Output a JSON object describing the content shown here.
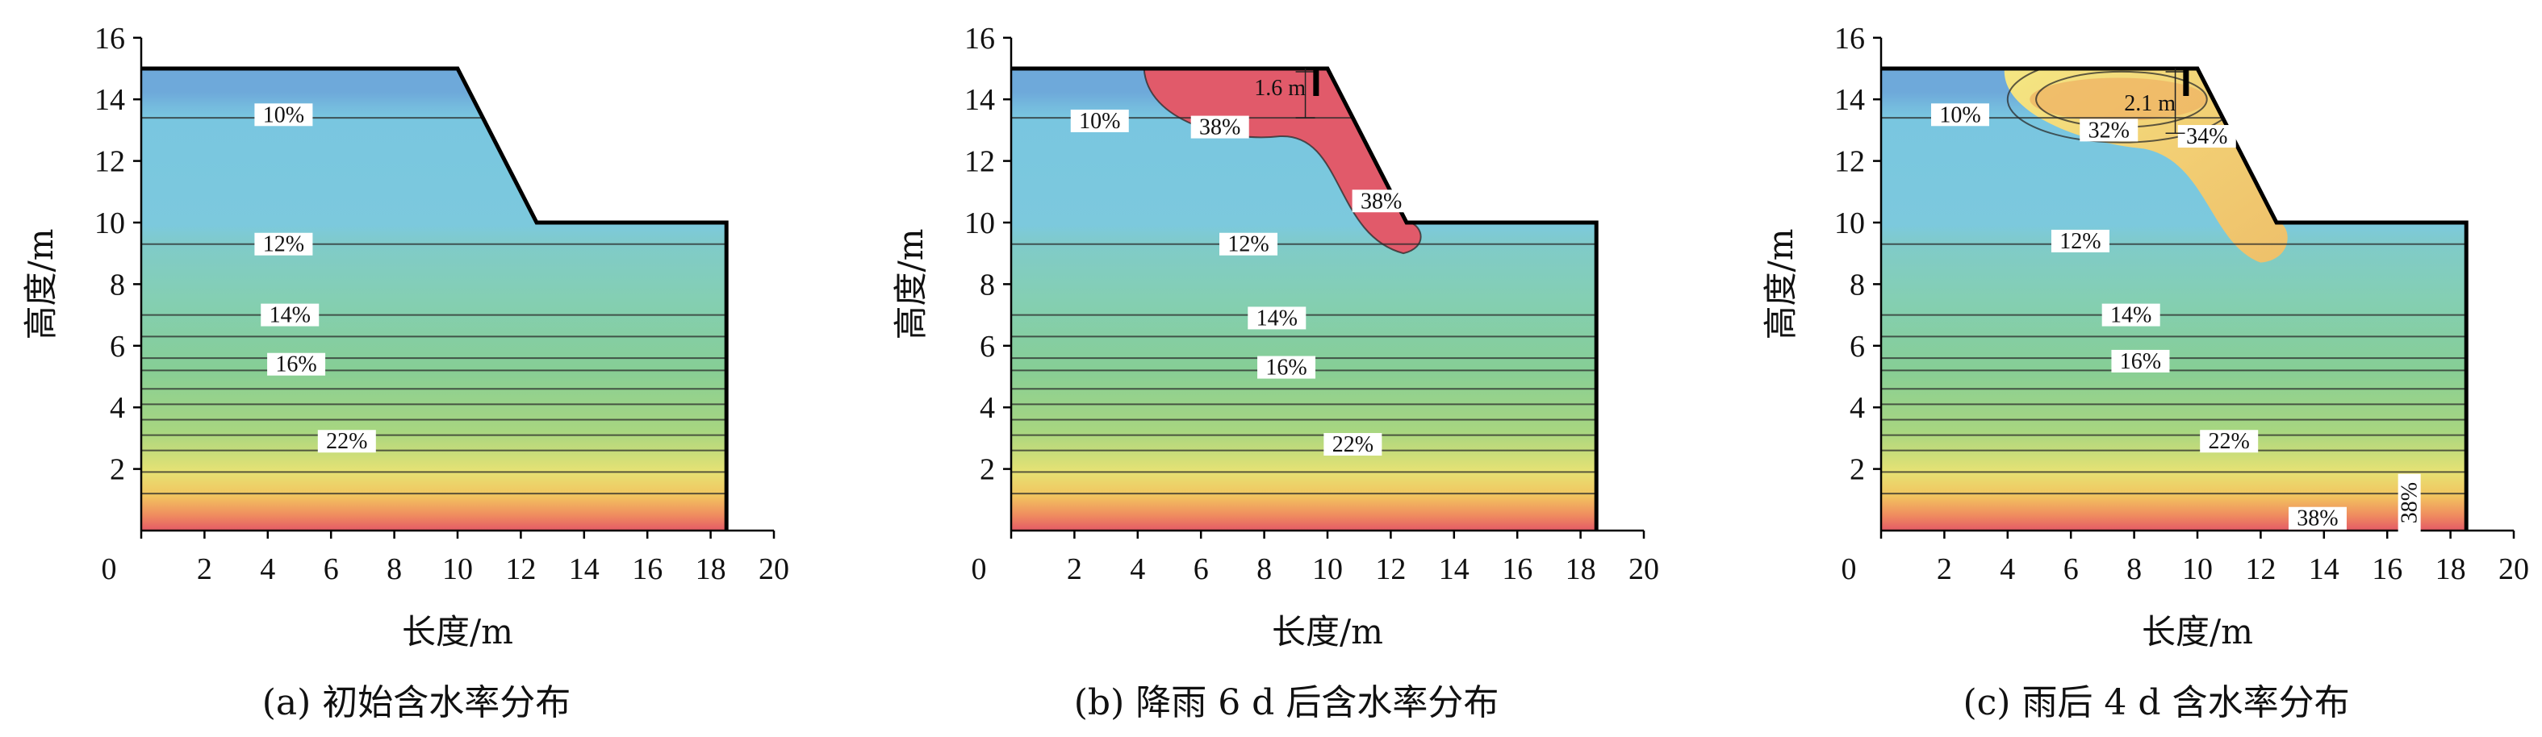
{
  "chart_data": [
    {
      "type": "heatmap",
      "caption": "(a) 初始含水率分布",
      "xlabel": "长度/m",
      "ylabel": "高度/m",
      "xlim": [
        0,
        20
      ],
      "ylim": [
        0,
        16
      ],
      "x_ticks": [
        "0",
        "2",
        "4",
        "6",
        "8",
        "10",
        "12",
        "14",
        "16",
        "18",
        "20"
      ],
      "y_ticks": [
        "2",
        "4",
        "6",
        "8",
        "10",
        "12",
        "14",
        "16"
      ],
      "slope_profile": {
        "x": [
          0,
          10,
          12.5,
          18.5
        ],
        "y": [
          15,
          15,
          10,
          10
        ]
      },
      "contour_labels": [
        {
          "text": "10%",
          "x": 4.5,
          "y": 13.5
        },
        {
          "text": "12%",
          "x": 4.5,
          "y": 9.3
        },
        {
          "text": "14%",
          "x": 4.7,
          "y": 7.0
        },
        {
          "text": "16%",
          "x": 4.9,
          "y": 5.4
        },
        {
          "text": "22%",
          "x": 6.5,
          "y": 2.9
        }
      ],
      "annotations": []
    },
    {
      "type": "heatmap",
      "caption": "(b) 降雨 6 d 后含水率分布",
      "xlabel": "长度/m",
      "ylabel": "高度/m",
      "xlim": [
        0,
        20
      ],
      "ylim": [
        0,
        16
      ],
      "x_ticks": [
        "0",
        "2",
        "4",
        "6",
        "8",
        "10",
        "12",
        "14",
        "16",
        "18",
        "20"
      ],
      "y_ticks": [
        "2",
        "4",
        "6",
        "8",
        "10",
        "12",
        "14",
        "16"
      ],
      "slope_profile": {
        "x": [
          0,
          10,
          12.5,
          18.5
        ],
        "y": [
          15,
          15,
          10,
          10
        ]
      },
      "contour_labels": [
        {
          "text": "10%",
          "x": 2.8,
          "y": 13.3
        },
        {
          "text": "38%",
          "x": 6.6,
          "y": 13.1
        },
        {
          "text": "38%",
          "x": 11.7,
          "y": 10.7
        },
        {
          "text": "12%",
          "x": 7.5,
          "y": 9.3
        },
        {
          "text": "14%",
          "x": 8.4,
          "y": 6.9
        },
        {
          "text": "16%",
          "x": 8.7,
          "y": 5.3
        },
        {
          "text": "22%",
          "x": 10.8,
          "y": 2.8
        }
      ],
      "annotations": [
        {
          "text": "1.6 m",
          "x": 8.5,
          "y": 14.4
        }
      ]
    },
    {
      "type": "heatmap",
      "caption": "(c) 雨后 4 d 含水率分布",
      "xlabel": "长度/m",
      "ylabel": "高度/m",
      "xlim": [
        0,
        20
      ],
      "ylim": [
        0,
        16
      ],
      "x_ticks": [
        "0",
        "2",
        "4",
        "6",
        "8",
        "10",
        "12",
        "14",
        "16",
        "18",
        "20"
      ],
      "y_ticks": [
        "2",
        "4",
        "6",
        "8",
        "10",
        "12",
        "14",
        "16"
      ],
      "slope_profile": {
        "x": [
          0,
          10,
          12.5,
          18.5
        ],
        "y": [
          15,
          15,
          10,
          10
        ]
      },
      "contour_labels": [
        {
          "text": "10%",
          "x": 2.5,
          "y": 13.5
        },
        {
          "text": "32%",
          "x": 7.2,
          "y": 13.0
        },
        {
          "text": "34%",
          "x": 10.3,
          "y": 12.8
        },
        {
          "text": "12%",
          "x": 6.3,
          "y": 9.4
        },
        {
          "text": "14%",
          "x": 7.9,
          "y": 7.0
        },
        {
          "text": "16%",
          "x": 8.2,
          "y": 5.5
        },
        {
          "text": "22%",
          "x": 11.0,
          "y": 2.9
        },
        {
          "text": "38%",
          "x": 13.8,
          "y": 0.4
        },
        {
          "text": "38%",
          "x": 16.7,
          "y": 0.9,
          "rotate": true
        }
      ],
      "annotations": [
        {
          "text": "2.1 m",
          "x": 8.5,
          "y": 13.9
        }
      ]
    }
  ]
}
